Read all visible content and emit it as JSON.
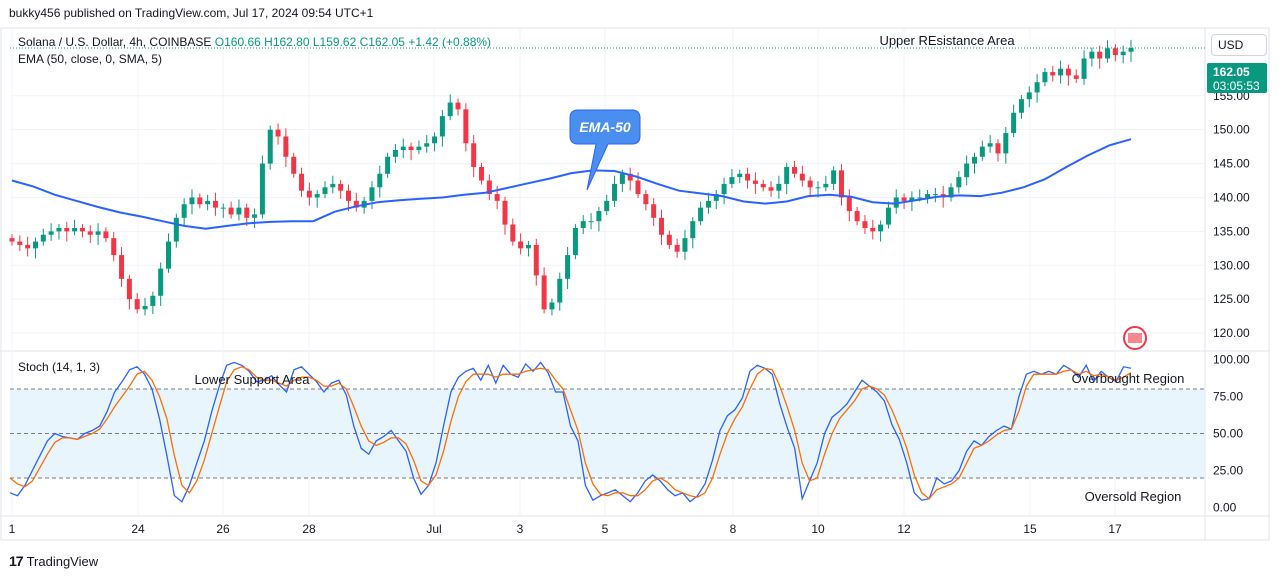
{
  "publish_line": "bukky456 published on TradingView.com, Jul 17, 2024 09:54 UTC+1",
  "legend": {
    "symbol": "Solana / U.S. Dollar, 4h, COINBASE",
    "open": "O160.66",
    "high": "H162.80",
    "low": "L159.62",
    "close": "C162.05",
    "change": "+1.42 (+0.88%)",
    "ema": "EMA (50, close, 0, SMA, 5)",
    "stoch": "Stoch (14, 1, 3)"
  },
  "currency": "USD",
  "price_tag": {
    "price": "162.05",
    "countdown": "03:05:53"
  },
  "annotations": {
    "upper_resistance": "Upper REsistance Area",
    "ema_callout": "EMA-50",
    "lower_support": "Lower Support Area",
    "overbought": "Overbought Region",
    "oversold": "Oversold Region"
  },
  "footer": {
    "brand": "TradingView"
  },
  "colors": {
    "up": "#089981",
    "down": "#f23645",
    "ema": "#2962ff",
    "stoch_k": "#2962ff",
    "stoch_d": "#ff6d00",
    "band": "#e3f2fd",
    "callout": "#4a8ef0"
  },
  "chart_data": [
    {
      "type": "candlestick",
      "title": "Solana / U.S. Dollar, 4h, COINBASE",
      "x_ticks": [
        "1",
        "24",
        "26",
        "28",
        "Jul",
        "3",
        "5",
        "8",
        "10",
        "12",
        "15",
        "17"
      ],
      "y_ticks": [
        "155.00",
        "150.00",
        "145.00",
        "140.00",
        "135.00",
        "130.00",
        "125.00",
        "120.00"
      ],
      "ylim": [
        117.5,
        165
      ],
      "last_price": 162.05,
      "close_series": [
        133.5,
        133,
        132.5,
        133.5,
        134.5,
        135,
        135.5,
        135,
        135.5,
        135,
        134.5,
        135,
        134,
        131.5,
        128,
        125,
        123.5,
        124,
        125.5,
        129.5,
        133.5,
        137,
        139,
        140,
        139,
        139.5,
        138.5,
        138.5,
        137.5,
        138.5,
        137,
        137.5,
        145,
        150,
        149,
        146,
        143.5,
        141,
        140,
        140.5,
        141.5,
        142,
        141,
        139.5,
        138.5,
        139.5,
        141.5,
        143.5,
        146,
        147,
        147.5,
        147,
        147.5,
        148,
        149,
        152,
        154,
        153,
        148,
        144.5,
        142.5,
        140.5,
        139.5,
        136,
        133.5,
        132.5,
        133,
        128.5,
        123.5,
        124.5,
        128,
        131.5,
        135.5,
        136.5,
        136.5,
        138,
        139.5,
        142,
        143.5,
        142.5,
        140.5,
        139,
        137,
        134.5,
        133,
        132,
        134,
        136.5,
        138.5,
        139.5,
        140.5,
        142,
        143,
        143.5,
        142.5,
        142,
        141.5,
        141,
        142,
        144.5,
        143.5,
        142.5,
        141.5,
        141.5,
        142,
        144,
        140,
        138,
        136.5,
        135.5,
        135,
        136,
        138.5,
        140,
        139.5,
        140,
        140,
        140.5,
        140.5,
        140,
        141.5,
        143,
        145,
        146,
        147.5,
        148,
        146.5,
        149.5,
        152.5,
        154.5,
        155.5,
        157,
        158.5,
        158,
        159,
        158,
        157.5,
        160.5,
        161.5,
        160.5,
        162,
        161,
        161.5,
        162.05
      ],
      "ema_series": [
        142.5,
        141.6,
        140.4,
        139.5,
        138.6,
        137.8,
        137.2,
        136.5,
        135.8,
        135.4,
        135.8,
        136.2,
        136.4,
        136.5,
        136.5,
        137.9,
        138.7,
        139.3,
        139.6,
        139.8,
        140,
        140.4,
        140.7,
        141.4,
        142.1,
        142.8,
        143.6,
        144,
        143.9,
        143.1,
        142,
        141,
        140.6,
        140.2,
        139.4,
        139.1,
        139.4,
        140.2,
        140.4,
        140.1,
        139.3,
        139.1,
        139.6,
        140.1,
        140.3,
        140.2,
        140.7,
        141.5,
        142.7,
        144.5,
        146.2,
        147.7,
        148.6
      ],
      "ylabel": "",
      "xlabel": ""
    },
    {
      "type": "line",
      "title": "Stoch (14, 1, 3)",
      "y_ticks": [
        "100.00",
        "75.00",
        "50.00",
        "25.00",
        "0.00"
      ],
      "ylim": [
        -5,
        105
      ],
      "bands": [
        20,
        50,
        80
      ],
      "series": [
        {
          "name": "%K",
          "values": [
            10,
            8,
            15,
            25,
            35,
            45,
            50,
            48,
            47,
            46,
            50,
            52,
            55,
            65,
            78,
            85,
            93,
            95,
            90,
            80,
            60,
            35,
            8,
            4,
            15,
            30,
            45,
            65,
            82,
            96,
            98,
            96,
            92,
            85,
            86,
            89,
            83,
            78,
            93,
            95,
            90,
            85,
            78,
            84,
            86,
            76,
            55,
            40,
            36,
            45,
            48,
            52,
            45,
            38,
            20,
            9,
            15,
            30,
            55,
            78,
            88,
            92,
            94,
            86,
            96,
            84,
            96,
            90,
            88,
            97,
            92,
            98,
            91,
            78,
            78,
            55,
            45,
            15,
            5,
            8,
            10,
            12,
            8,
            4,
            10,
            18,
            22,
            18,
            12,
            8,
            10,
            4,
            8,
            16,
            32,
            52,
            62,
            66,
            74,
            92,
            96,
            94,
            90,
            70,
            54,
            40,
            6,
            18,
            30,
            50,
            61,
            65,
            70,
            78,
            86,
            82,
            78,
            72,
            56,
            46,
            30,
            10,
            5,
            6,
            20,
            16,
            18,
            25,
            38,
            45,
            42,
            48,
            52,
            55,
            53,
            75,
            90,
            92,
            90,
            92,
            90,
            96,
            93,
            88,
            96,
            85,
            92,
            88,
            85,
            95,
            94
          ]
        },
        {
          "name": "%D",
          "values": [
            20,
            16,
            14,
            18,
            27,
            36,
            44,
            47,
            47,
            46,
            48,
            50,
            53,
            60,
            68,
            75,
            82,
            90,
            92,
            86,
            75,
            60,
            35,
            15,
            10,
            18,
            32,
            50,
            68,
            85,
            93,
            95,
            93,
            88,
            86,
            86,
            84,
            82,
            86,
            88,
            88,
            86,
            82,
            82,
            84,
            80,
            68,
            55,
            45,
            42,
            44,
            47,
            47,
            43,
            32,
            18,
            15,
            22,
            38,
            58,
            75,
            85,
            90,
            90,
            90,
            88,
            90,
            90,
            90,
            92,
            93,
            94,
            93,
            86,
            80,
            66,
            52,
            30,
            16,
            9,
            8,
            10,
            10,
            8,
            8,
            12,
            18,
            20,
            17,
            12,
            10,
            8,
            7,
            10,
            20,
            36,
            50,
            60,
            68,
            80,
            90,
            94,
            93,
            82,
            68,
            52,
            30,
            18,
            20,
            36,
            50,
            60,
            66,
            72,
            80,
            82,
            80,
            76,
            66,
            54,
            40,
            22,
            10,
            6,
            12,
            14,
            16,
            20,
            30,
            40,
            42,
            45,
            49,
            52,
            53,
            65,
            82,
            90,
            90,
            90,
            90,
            92,
            93,
            90,
            92,
            89,
            90,
            88,
            86,
            88,
            91
          ]
        }
      ],
      "ylabel": "",
      "xlabel": ""
    }
  ]
}
